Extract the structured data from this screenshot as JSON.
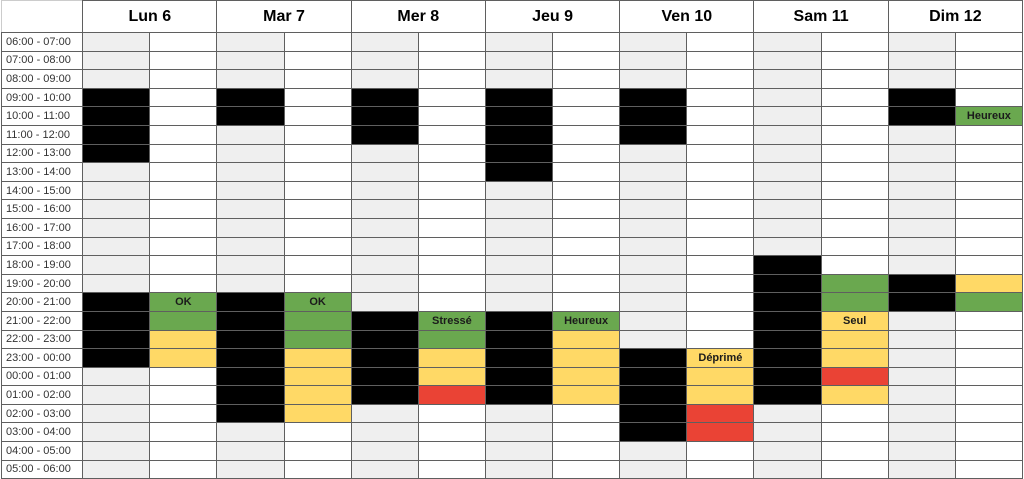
{
  "colors": {
    "rest": "#efefef",
    "sleep": "#000000",
    "G": "#6aa84f",
    "Y": "#ffd966",
    "R": "#ea4335"
  },
  "time_slots": [
    "06:00 - 07:00",
    "07:00 - 08:00",
    "08:00 - 09:00",
    "09:00 - 10:00",
    "10:00 - 11:00",
    "11:00 - 12:00",
    "12:00 - 13:00",
    "13:00 - 14:00",
    "14:00 - 15:00",
    "15:00 - 16:00",
    "16:00 - 17:00",
    "17:00 - 18:00",
    "18:00 - 19:00",
    "19:00 - 20:00",
    "20:00 - 21:00",
    "21:00 - 22:00",
    "22:00 - 23:00",
    "23:00 - 00:00",
    "00:00 - 01:00",
    "01:00 - 02:00",
    "02:00 - 03:00",
    "03:00 - 04:00",
    "04:00 - 05:00",
    "05:00 - 06:00"
  ],
  "days": [
    {
      "label": "Lun 6",
      "sleep": [
        0,
        0,
        0,
        1,
        1,
        1,
        1,
        0,
        0,
        0,
        0,
        0,
        0,
        0,
        1,
        1,
        1,
        1,
        0,
        0,
        0,
        0,
        0,
        0
      ],
      "mood": [
        "",
        "",
        "",
        "",
        "",
        "",
        "",
        "",
        "",
        "",
        "",
        "",
        "",
        "",
        "G",
        "G",
        "Y",
        "Y",
        "",
        "",
        "",
        "",
        "",
        ""
      ],
      "labels": {
        "14": "OK"
      }
    },
    {
      "label": "Mar 7",
      "sleep": [
        0,
        0,
        0,
        1,
        1,
        0,
        0,
        0,
        0,
        0,
        0,
        0,
        0,
        0,
        1,
        1,
        1,
        1,
        1,
        1,
        1,
        0,
        0,
        0
      ],
      "mood": [
        "",
        "",
        "",
        "",
        "",
        "",
        "",
        "",
        "",
        "",
        "",
        "",
        "",
        "",
        "G",
        "G",
        "G",
        "Y",
        "Y",
        "Y",
        "Y",
        "",
        "",
        ""
      ],
      "labels": {
        "14": "OK"
      }
    },
    {
      "label": "Mer 8",
      "sleep": [
        0,
        0,
        0,
        1,
        1,
        1,
        0,
        0,
        0,
        0,
        0,
        0,
        0,
        0,
        0,
        1,
        1,
        1,
        1,
        1,
        0,
        0,
        0,
        0
      ],
      "mood": [
        "",
        "",
        "",
        "",
        "",
        "",
        "",
        "",
        "",
        "",
        "",
        "",
        "",
        "",
        "",
        "G",
        "G",
        "Y",
        "Y",
        "R",
        "",
        "",
        "",
        ""
      ],
      "labels": {
        "15": "Stressé"
      }
    },
    {
      "label": "Jeu 9",
      "sleep": [
        0,
        0,
        0,
        1,
        1,
        1,
        1,
        1,
        0,
        0,
        0,
        0,
        0,
        0,
        0,
        1,
        1,
        1,
        1,
        1,
        0,
        0,
        0,
        0
      ],
      "mood": [
        "",
        "",
        "",
        "",
        "",
        "",
        "",
        "",
        "",
        "",
        "",
        "",
        "",
        "",
        "",
        "G",
        "Y",
        "Y",
        "Y",
        "Y",
        "",
        "",
        "",
        ""
      ],
      "labels": {
        "15": "Heureux"
      }
    },
    {
      "label": "Ven 10",
      "sleep": [
        0,
        0,
        0,
        1,
        1,
        1,
        0,
        0,
        0,
        0,
        0,
        0,
        0,
        0,
        0,
        0,
        0,
        1,
        1,
        1,
        1,
        1,
        0,
        0
      ],
      "mood": [
        "",
        "",
        "",
        "",
        "",
        "",
        "",
        "",
        "",
        "",
        "",
        "",
        "",
        "",
        "",
        "",
        "",
        "Y",
        "Y",
        "Y",
        "R",
        "R",
        "",
        ""
      ],
      "labels": {
        "17": "Déprimé"
      }
    },
    {
      "label": "Sam 11",
      "sleep": [
        0,
        0,
        0,
        0,
        0,
        0,
        0,
        0,
        0,
        0,
        0,
        0,
        1,
        1,
        1,
        1,
        1,
        1,
        1,
        1,
        0,
        0,
        0,
        0
      ],
      "mood": [
        "",
        "",
        "",
        "",
        "",
        "",
        "",
        "",
        "",
        "",
        "",
        "",
        "",
        "G",
        "G",
        "Y",
        "Y",
        "Y",
        "R",
        "Y",
        "",
        "",
        "",
        ""
      ],
      "labels": {
        "15": "Seul"
      }
    },
    {
      "label": "Dim 12",
      "sleep": [
        0,
        0,
        0,
        1,
        1,
        0,
        0,
        0,
        0,
        0,
        0,
        0,
        0,
        1,
        1,
        0,
        0,
        0,
        0,
        0,
        0,
        0,
        0,
        0
      ],
      "mood": [
        "",
        "",
        "",
        "",
        "G",
        "",
        "",
        "",
        "",
        "",
        "",
        "",
        "",
        "Y",
        "G",
        "",
        "",
        "",
        "",
        "",
        "",
        "",
        "",
        ""
      ],
      "labels": {
        "4": "Heureux"
      }
    }
  ]
}
